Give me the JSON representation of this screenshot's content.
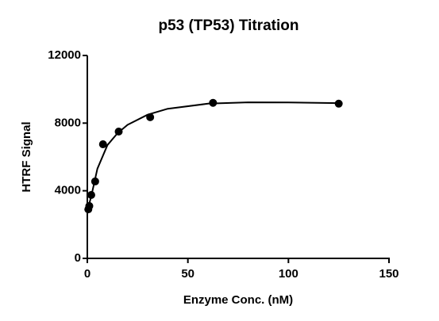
{
  "chart_data": {
    "type": "scatter",
    "title": "p53 (TP53) Titration",
    "x_label": "Enzyme Conc. (nM)",
    "y_label": "HTRF Signal",
    "series": [
      {
        "style": "markers",
        "color": "#000000",
        "x": [
          0.49,
          0.98,
          1.95,
          3.9,
          7.8,
          15.6,
          31.25,
          62.5,
          125
        ],
        "values": [
          2900,
          3100,
          3750,
          4550,
          6750,
          7500,
          8350,
          9200,
          9150
        ]
      },
      {
        "style": "line",
        "color": "#000000",
        "x": [
          0,
          2,
          5,
          10,
          15,
          20,
          30,
          40,
          60,
          80,
          100,
          125
        ],
        "values": [
          2800,
          3700,
          5300,
          6700,
          7400,
          7900,
          8500,
          8850,
          9150,
          9230,
          9220,
          9180
        ]
      }
    ],
    "xlim": [
      0,
      150
    ],
    "xticks": [
      0,
      50,
      100,
      150
    ],
    "ylim": [
      0,
      12000
    ],
    "yticks": [
      0,
      4000,
      8000,
      12000
    ],
    "grid": false
  }
}
